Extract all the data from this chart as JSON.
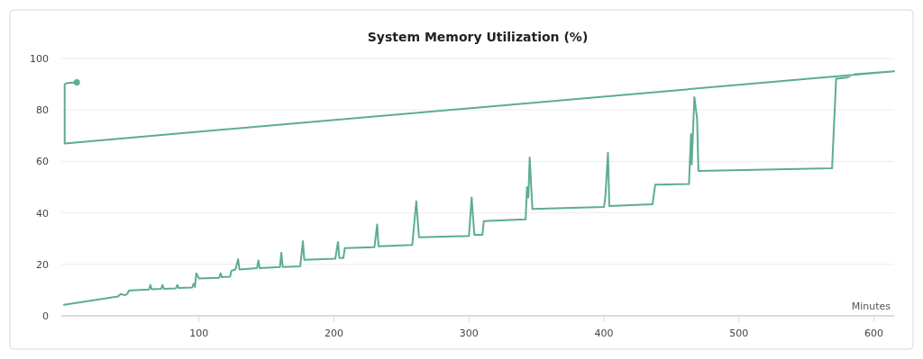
{
  "chart_data": {
    "type": "line",
    "title": "System Memory Utilization (%)",
    "xlabel": "Minutes",
    "xlim": [
      -2,
      615
    ],
    "xticks": [
      100,
      200,
      300,
      400,
      500,
      600
    ],
    "ylim": [
      0,
      100
    ],
    "yticks": [
      0,
      20,
      40,
      60,
      80,
      100
    ],
    "grid": "y",
    "marker": "none",
    "line_style": "solid",
    "series": [
      {
        "color": "#5cae8e",
        "x": [
          0,
          40,
          42,
          45,
          47,
          48,
          53,
          63,
          64,
          65,
          72,
          73,
          74,
          83,
          84,
          85,
          95,
          96,
          97,
          98,
          100,
          115,
          116,
          117,
          123,
          124,
          127,
          129,
          130,
          143,
          144,
          145,
          160,
          161,
          162,
          175,
          177,
          178,
          201,
          203,
          204,
          207,
          208,
          230,
          232,
          233,
          258,
          261,
          263,
          300,
          302,
          304,
          310,
          311,
          342,
          343,
          344,
          345,
          347,
          400,
          401,
          403,
          404,
          436,
          438,
          463,
          464.5,
          465,
          467,
          469,
          470,
          569,
          572,
          580,
          586,
          615,
          0.5,
          0.5,
          2.7,
          9.5
        ],
        "values": [
          4.3,
          7.5,
          8.5,
          8,
          8.5,
          9.8,
          10,
          10.2,
          12,
          10.3,
          10.5,
          12,
          10.5,
          10.7,
          12,
          10.8,
          11,
          12.5,
          11.2,
          16.5,
          14.5,
          14.8,
          16.5,
          15,
          15.2,
          17.5,
          18,
          22,
          18,
          18.5,
          21.5,
          18.5,
          19,
          24.5,
          19,
          19.2,
          29,
          21.8,
          22.2,
          28.7,
          22.5,
          22.5,
          26.3,
          26.7,
          35.5,
          27,
          27.5,
          44.5,
          30.5,
          31,
          46,
          31.5,
          31.5,
          36.8,
          37.5,
          50,
          46,
          61.5,
          41.5,
          42.3,
          46,
          63.4,
          42.7,
          43.4,
          51,
          51.2,
          70.6,
          58.8,
          85,
          76.7,
          56.3,
          57.3,
          92.1,
          92.6,
          93.9,
          95,
          67,
          90,
          90.5,
          90.7
        ]
      },
      {
        "type": "scatter",
        "color": "#5cae8e",
        "x": [
          9.5
        ],
        "values": [
          90.7
        ],
        "marker": "circle"
      }
    ]
  }
}
